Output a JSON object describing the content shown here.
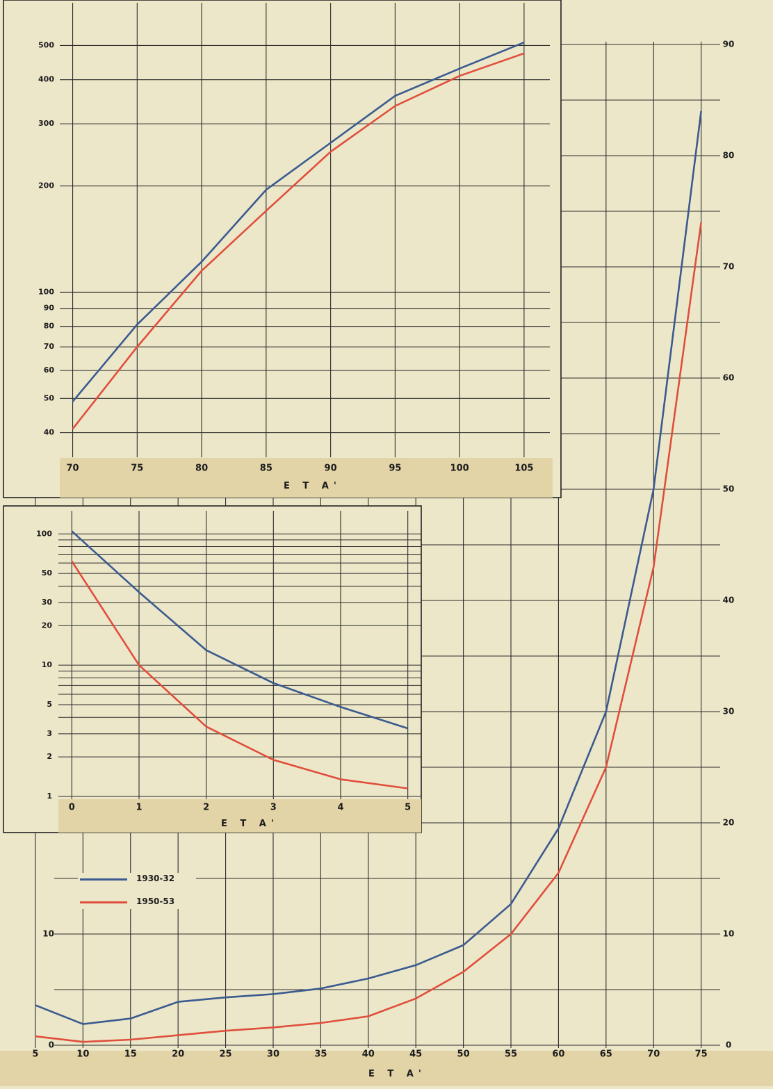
{
  "chart_data": [
    {
      "type": "line",
      "xlabel": "E T A'",
      "yscale": "linear",
      "x_ticks": [
        5,
        10,
        15,
        20,
        25,
        30,
        35,
        40,
        45,
        50,
        55,
        60,
        65,
        70,
        75
      ],
      "x_tick_labels": [
        "5",
        "10",
        "15",
        "20",
        "25",
        "30",
        "35",
        "40",
        "45",
        "50",
        "55",
        "60",
        "65",
        "70",
        "75"
      ],
      "y_ticks_left": [
        0,
        10
      ],
      "y_tick_labels_left": [
        "0",
        "10"
      ],
      "y_ticks_right": [
        0,
        10,
        20,
        30,
        40,
        50,
        60,
        70,
        80,
        90
      ],
      "y_tick_labels_right": [
        "0",
        "10",
        "20",
        "30",
        "40",
        "50",
        "60",
        "70",
        "80",
        "90"
      ],
      "xlim": [
        4.2,
        77
      ],
      "ylim": [
        0,
        90
      ],
      "grid": true,
      "legend": "top-left",
      "legend_entries": [
        "1930-32",
        "1950-53"
      ],
      "series": [
        {
          "name": "1930-32",
          "color": "#3b5a8f",
          "x": [
            5,
            10,
            15,
            20,
            25,
            30,
            35,
            40,
            45,
            50,
            55,
            60,
            65,
            70,
            75
          ],
          "y": [
            3.6,
            1.9,
            2.4,
            3.9,
            4.3,
            4.6,
            5.1,
            6.0,
            7.2,
            9.0,
            12.7,
            19.5,
            30.0,
            50.0,
            84.0
          ]
        },
        {
          "name": "1950-53",
          "color": "#e04e3c",
          "x": [
            5,
            10,
            15,
            20,
            25,
            30,
            35,
            40,
            45,
            50,
            55,
            60,
            65,
            70,
            75
          ],
          "y": [
            0.8,
            0.3,
            0.5,
            0.9,
            1.3,
            1.6,
            2.0,
            2.6,
            4.2,
            6.6,
            10.0,
            15.5,
            25.0,
            43.0,
            74.0
          ]
        }
      ]
    },
    {
      "type": "line",
      "xlabel": "E T A'",
      "yscale": "log",
      "x_ticks": [
        70,
        75,
        80,
        85,
        90,
        95,
        100,
        105
      ],
      "x_tick_labels": [
        "70",
        "75",
        "80",
        "85",
        "90",
        "95",
        "100",
        "105"
      ],
      "y_ticks": [
        40,
        50,
        60,
        70,
        80,
        90,
        100,
        200,
        300,
        400,
        500
      ],
      "y_tick_labels": [
        "40",
        "50",
        "60",
        "70",
        "80",
        "90",
        "100",
        "200",
        "300",
        "400",
        "500"
      ],
      "xlim": [
        69,
        107
      ],
      "ylim": [
        35,
        620
      ],
      "grid": true,
      "series": [
        {
          "name": "1930-32",
          "color": "#3b5a8f",
          "x": [
            70,
            75,
            80,
            85,
            90,
            95,
            100,
            105
          ],
          "y": [
            49,
            81,
            122,
            195,
            265,
            360,
            430,
            510
          ]
        },
        {
          "name": "1950-53",
          "color": "#e04e3c",
          "x": [
            70,
            75,
            80,
            85,
            90,
            95,
            100,
            105
          ],
          "y": [
            41,
            70,
            115,
            170,
            250,
            337,
            410,
            475
          ]
        }
      ]
    },
    {
      "type": "line",
      "xlabel": "E T A'",
      "yscale": "log",
      "x_ticks": [
        0,
        1,
        2,
        3,
        4,
        5
      ],
      "x_tick_labels": [
        "0",
        "1",
        "2",
        "3",
        "4",
        "5"
      ],
      "y_ticks": [
        1,
        2,
        3,
        5,
        10,
        20,
        30,
        50,
        100
      ],
      "y_tick_labels": [
        "1",
        "2",
        "3",
        "5",
        "10",
        "20",
        "30",
        "50",
        "100"
      ],
      "xlim": [
        -0.2,
        5.2
      ],
      "ylim": [
        1,
        150
      ],
      "grid": true,
      "series": [
        {
          "name": "1930-32",
          "color": "#3b5a8f",
          "x": [
            0,
            1,
            2,
            3,
            4,
            5
          ],
          "y": [
            105,
            36,
            13,
            7.3,
            4.8,
            3.3
          ]
        },
        {
          "name": "1950-53",
          "color": "#e04e3c",
          "x": [
            0,
            1,
            2,
            3,
            4,
            5
          ],
          "y": [
            62,
            10,
            3.4,
            1.9,
            1.35,
            1.15
          ]
        }
      ]
    }
  ]
}
